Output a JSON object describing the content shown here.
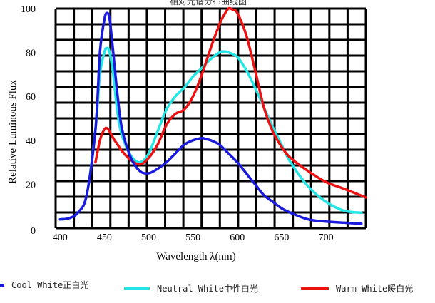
{
  "chart_data": {
    "type": "line",
    "title": "相对光谱分布曲线图",
    "xlabel": "Wavelength λ(nm)",
    "ylabel": "Relative Luminous Flux",
    "xlim": [
      395,
      745
    ],
    "ylim": [
      0,
      100
    ],
    "x_ticks": [
      "400",
      "450",
      "500",
      "550",
      "600",
      "650",
      "700"
    ],
    "y_ticks": [
      "0",
      "20",
      "40",
      "60",
      "80",
      "100"
    ],
    "grid": true,
    "legend_position": "bottom",
    "series": [
      {
        "name": "Cool White正白光",
        "color": "#1a1adf",
        "x": [
          400,
          410,
          420,
          430,
          440,
          445,
          450,
          453,
          456,
          460,
          465,
          470,
          480,
          490,
          500,
          510,
          520,
          530,
          540,
          550,
          560,
          565,
          570,
          580,
          590,
          600,
          610,
          620,
          630,
          640,
          650,
          660,
          680,
          700,
          720,
          740
        ],
        "y": [
          4,
          4.5,
          7,
          15,
          45,
          80,
          95,
          98,
          95,
          80,
          60,
          45,
          32,
          26,
          25,
          27,
          30,
          34,
          38,
          40,
          41,
          40.5,
          40,
          38,
          34,
          30,
          25,
          20,
          15,
          12,
          9,
          7,
          4,
          3,
          2.5,
          2
        ]
      },
      {
        "name": "Neutral White中性白光",
        "color": "#22e5e5",
        "x": [
          400,
          410,
          420,
          430,
          440,
          445,
          450,
          453,
          456,
          460,
          465,
          470,
          480,
          490,
          500,
          510,
          520,
          530,
          540,
          550,
          560,
          570,
          580,
          585,
          590,
          600,
          610,
          620,
          630,
          640,
          650,
          660,
          680,
          700,
          720,
          740
        ],
        "y": [
          4,
          4.5,
          7,
          15,
          45,
          70,
          80,
          82,
          80,
          70,
          52,
          42,
          33,
          30,
          34,
          44,
          54,
          60,
          64,
          69,
          73,
          77,
          80,
          80.5,
          80,
          78,
          72,
          64,
          55,
          46,
          38,
          30,
          19,
          12,
          8,
          7
        ]
      },
      {
        "name": "Warm White暖白光",
        "color": "#ee1111",
        "x": [
          440,
          445,
          450,
          453,
          456,
          460,
          465,
          470,
          480,
          490,
          500,
          510,
          520,
          530,
          540,
          550,
          560,
          570,
          580,
          585,
          590,
          595,
          600,
          610,
          620,
          630,
          640,
          650,
          660,
          680,
          700,
          720,
          745
        ],
        "y": [
          30,
          40,
          45,
          45.5,
          44,
          41,
          38,
          35,
          31,
          29,
          32,
          38,
          47,
          52,
          54,
          60,
          70,
          82,
          93,
          97,
          100,
          99.5,
          98,
          88,
          72,
          55,
          44,
          37,
          32,
          26,
          21,
          18,
          14
        ]
      }
    ]
  }
}
